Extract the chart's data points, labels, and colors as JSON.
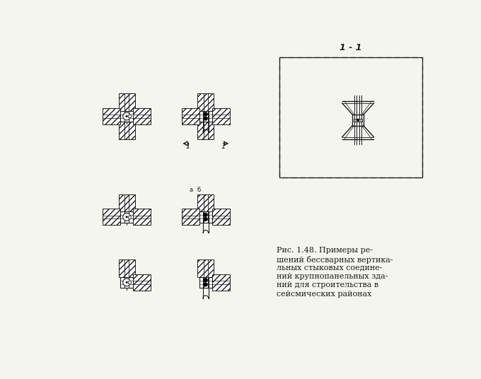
{
  "bg_color": "#f5f5f0",
  "line_color": "#1a1a1a",
  "hatch_color": "#2a2a2a",
  "section_label": "1 - 1",
  "caption_lines": [
    "Рис. 1.48. Примеры ре-",
    "шений бессварных вертика-",
    "льных стыковых соедине-",
    "ний крупнопанельных зда-",
    "ний для строительства в",
    "сейсмических районах"
  ]
}
